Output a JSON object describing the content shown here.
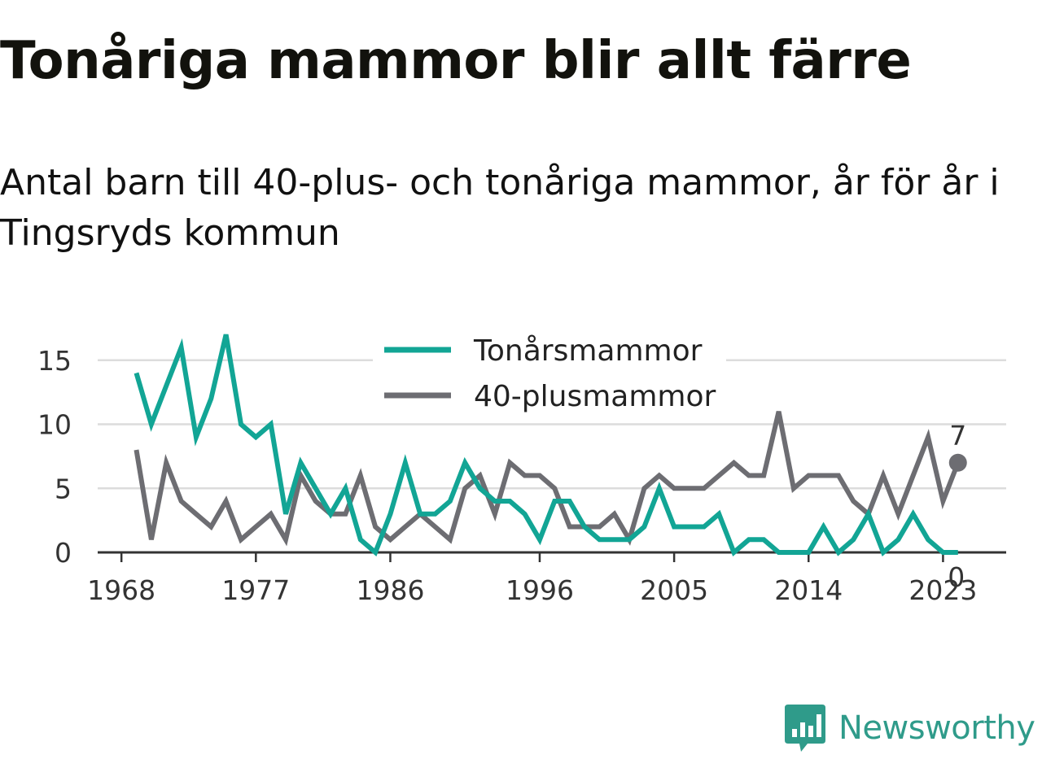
{
  "header": {
    "title": "Tonåriga mammor blir allt färre",
    "subtitle": "Antal barn till 40-plus- och tonåriga mammor, år för år i Tingsryds kommun"
  },
  "brand": {
    "name": "Newsworthy",
    "color": "#2f9b8a",
    "icon": "newsworthy-logo-icon"
  },
  "chart_data": {
    "type": "line",
    "x": [
      1969,
      1970,
      1971,
      1972,
      1973,
      1974,
      1975,
      1976,
      1977,
      1978,
      1979,
      1980,
      1981,
      1982,
      1983,
      1984,
      1985,
      1986,
      1987,
      1988,
      1989,
      1990,
      1991,
      1992,
      1993,
      1994,
      1995,
      1996,
      1997,
      1998,
      1999,
      2000,
      2001,
      2002,
      2003,
      2004,
      2005,
      2006,
      2007,
      2008,
      2009,
      2010,
      2011,
      2012,
      2013,
      2014,
      2015,
      2016,
      2017,
      2018,
      2019,
      2020,
      2021,
      2022,
      2023,
      2024
    ],
    "series": [
      {
        "name": "Tonårsmammor",
        "color": "#12a595",
        "values": [
          14,
          10,
          13,
          16,
          9,
          12,
          17,
          10,
          9,
          10,
          3,
          7,
          5,
          3,
          5,
          1,
          0,
          3,
          7,
          3,
          3,
          4,
          7,
          5,
          4,
          4,
          3,
          1,
          4,
          4,
          2,
          1,
          1,
          1,
          2,
          5,
          2,
          2,
          2,
          3,
          0,
          1,
          1,
          0,
          0,
          0,
          2,
          0,
          1,
          3,
          0,
          1,
          3,
          1,
          0,
          0
        ]
      },
      {
        "name": "40-plusmammor",
        "color": "#6d6d72",
        "values": [
          8,
          1,
          7,
          4,
          3,
          2,
          4,
          1,
          2,
          3,
          1,
          6,
          4,
          3,
          3,
          6,
          2,
          1,
          2,
          3,
          2,
          1,
          5,
          6,
          3,
          7,
          6,
          6,
          5,
          2,
          2,
          2,
          3,
          1,
          5,
          6,
          5,
          5,
          5,
          6,
          7,
          6,
          6,
          11,
          5,
          6,
          6,
          6,
          4,
          3,
          6,
          3,
          6,
          9,
          4,
          7
        ]
      }
    ],
    "x_ticks": [
      "1968",
      "1977",
      "1986",
      "1996",
      "2005",
      "2014",
      "2023"
    ],
    "y_ticks": [
      "0",
      "5",
      "10",
      "15"
    ],
    "ylim": [
      0,
      17
    ],
    "end_labels": [
      {
        "series": "40-plusmammor",
        "text": "7"
      },
      {
        "series": "Tonårsmammor",
        "text": "0"
      }
    ],
    "legend_position": "top-center",
    "grid": "horizontal"
  }
}
